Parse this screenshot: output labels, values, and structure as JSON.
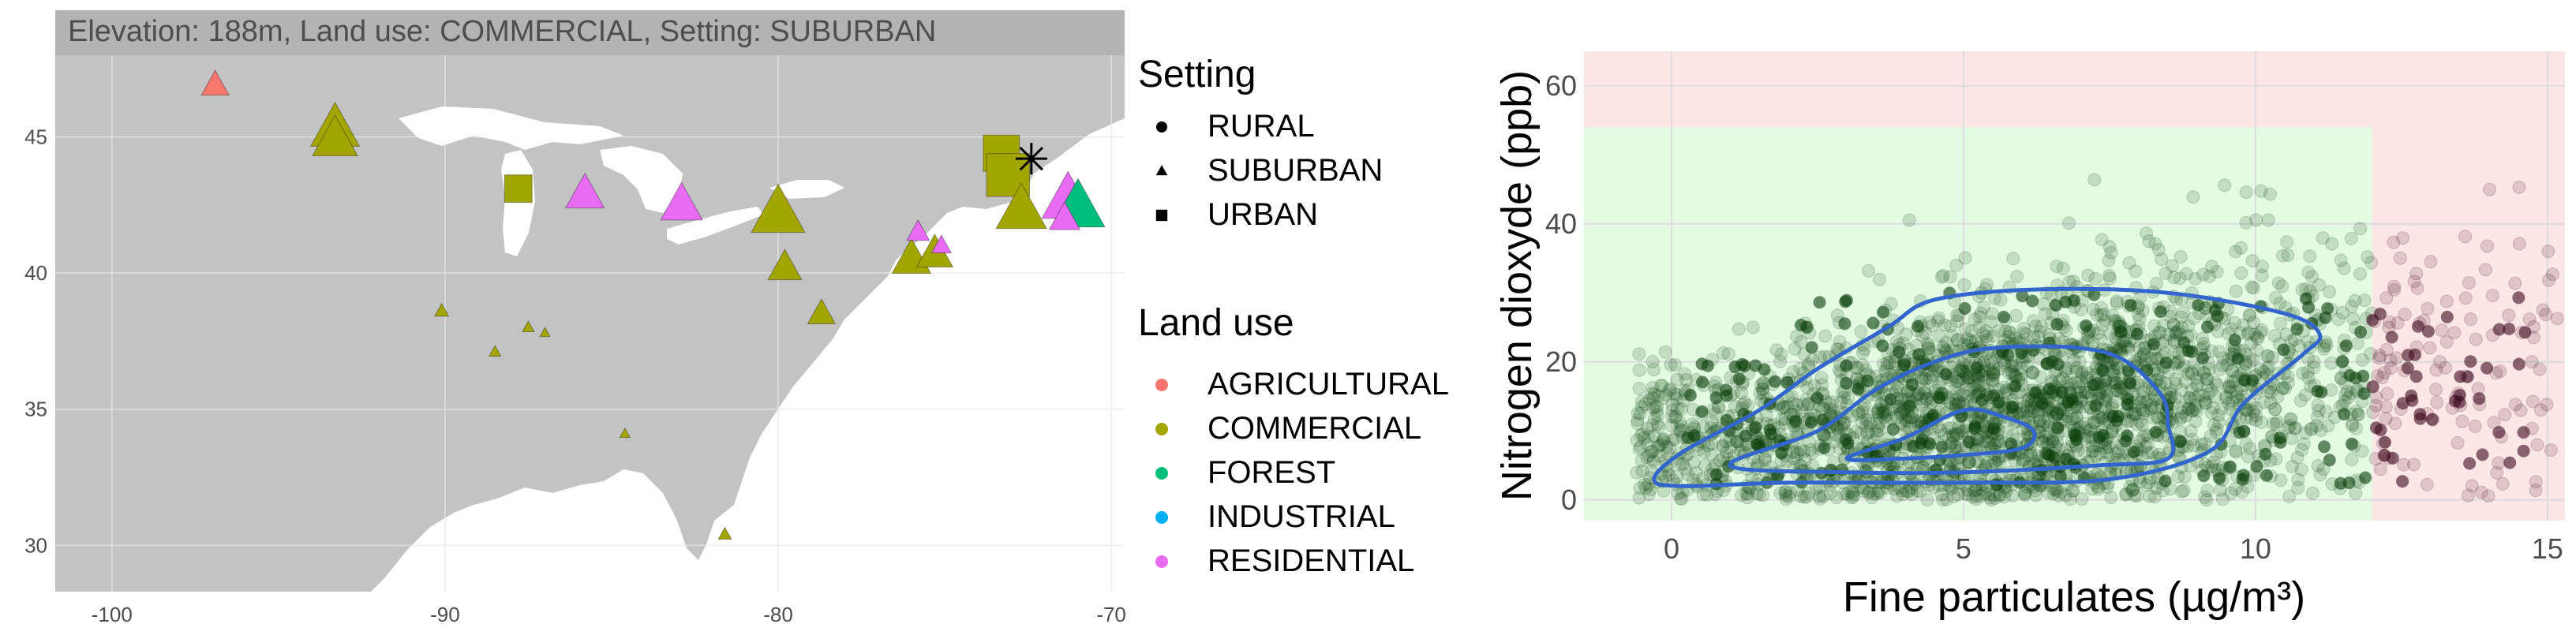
{
  "chart_data": [
    {
      "type": "scatter",
      "subtype": "map",
      "title": "Elevation: 188m, Land use: COMMERCIAL, Setting: SUBURBAN",
      "xlabel": "",
      "ylabel": "",
      "xlim": [
        -101.7,
        -69.6
      ],
      "ylim": [
        28.3,
        48.0
      ],
      "x_ticks": [
        -100,
        -90,
        -80,
        -70
      ],
      "x_tick_labels": [
        "-100",
        "-90",
        "-80",
        "-70"
      ],
      "y_ticks": [
        30,
        35,
        40,
        45
      ],
      "y_tick_labels": [
        "30",
        "35",
        "40",
        "45"
      ],
      "grid": true,
      "colors": {
        "land": "#c3c3c3",
        "water": "#ffffff",
        "grid": "#e6e6e6",
        "title_bar": "#b3b3b3",
        "title_text": "#ffffff",
        "selected_marker": "#000000"
      },
      "legends": [
        {
          "title": "Setting",
          "entries": [
            {
              "label": "RURAL",
              "shape": "circle"
            },
            {
              "label": "SUBURBAN",
              "shape": "triangle"
            },
            {
              "label": "URBAN",
              "shape": "square"
            }
          ]
        },
        {
          "title": "Land use",
          "entries": [
            {
              "label": "AGRICULTURAL",
              "color": "#f8766d"
            },
            {
              "label": "COMMERCIAL",
              "color": "#a3a500"
            },
            {
              "label": "FOREST",
              "color": "#00bf7d"
            },
            {
              "label": "INDUSTRIAL",
              "color": "#00b0f6"
            },
            {
              "label": "RESIDENTIAL",
              "color": "#e76bf3"
            }
          ]
        }
      ],
      "legend_position": "right",
      "points": [
        {
          "lon": -96.9,
          "lat": 46.9,
          "land": "AGRICULTURAL",
          "shape": "triangle",
          "elev": 150
        },
        {
          "lon": -93.3,
          "lat": 45.3,
          "land": "COMMERCIAL",
          "shape": "triangle",
          "elev": 600
        },
        {
          "lon": -93.3,
          "lat": 44.9,
          "land": "COMMERCIAL",
          "shape": "triangle",
          "elev": 500
        },
        {
          "lon": -87.8,
          "lat": 43.1,
          "land": "COMMERCIAL",
          "shape": "square",
          "elev": 150
        },
        {
          "lon": -85.8,
          "lat": 42.9,
          "land": "RESIDENTIAL",
          "shape": "triangle",
          "elev": 350
        },
        {
          "lon": -82.9,
          "lat": 42.5,
          "land": "RESIDENTIAL",
          "shape": "triangle",
          "elev": 420
        },
        {
          "lon": -80.0,
          "lat": 42.2,
          "land": "COMMERCIAL",
          "shape": "triangle",
          "elev": 750
        },
        {
          "lon": -79.8,
          "lat": 40.2,
          "land": "COMMERCIAL",
          "shape": "triangle",
          "elev": 250
        },
        {
          "lon": -78.7,
          "lat": 38.5,
          "land": "COMMERCIAL",
          "shape": "triangle",
          "elev": 150
        },
        {
          "lon": -76.0,
          "lat": 40.5,
          "land": "COMMERCIAL",
          "shape": "triangle",
          "elev": 350
        },
        {
          "lon": -75.3,
          "lat": 40.7,
          "land": "COMMERCIAL",
          "shape": "triangle",
          "elev": 300
        },
        {
          "lon": -75.8,
          "lat": 41.5,
          "land": "RESIDENTIAL",
          "shape": "triangle",
          "elev": 90
        },
        {
          "lon": -75.1,
          "lat": 41.0,
          "land": "RESIDENTIAL",
          "shape": "triangle",
          "elev": 60
        },
        {
          "lon": -73.3,
          "lat": 44.4,
          "land": "COMMERCIAL",
          "shape": "square",
          "elev": 300
        },
        {
          "lon": -73.1,
          "lat": 43.6,
          "land": "COMMERCIAL",
          "shape": "square",
          "elev": 450
        },
        {
          "lon": -72.7,
          "lat": 42.3,
          "land": "COMMERCIAL",
          "shape": "triangle",
          "elev": 650
        },
        {
          "lon": -71.3,
          "lat": 42.7,
          "land": "RESIDENTIAL",
          "shape": "triangle",
          "elev": 700
        },
        {
          "lon": -71.0,
          "lat": 42.4,
          "land": "FOREST",
          "shape": "triangle",
          "elev": 750
        },
        {
          "lon": -71.4,
          "lat": 42.0,
          "land": "RESIDENTIAL",
          "shape": "triangle",
          "elev": 200
        },
        {
          "lon": -90.1,
          "lat": 38.6,
          "land": "COMMERCIAL",
          "shape": "triangle",
          "elev": 20
        },
        {
          "lon": -88.5,
          "lat": 37.1,
          "land": "COMMERCIAL",
          "shape": "triangle",
          "elev": 10
        },
        {
          "lon": -87.5,
          "lat": 38.0,
          "land": "COMMERCIAL",
          "shape": "triangle",
          "elev": 10
        },
        {
          "lon": -87.0,
          "lat": 37.8,
          "land": "COMMERCIAL",
          "shape": "triangle",
          "elev": 5
        },
        {
          "lon": -84.6,
          "lat": 34.1,
          "land": "COMMERCIAL",
          "shape": "triangle",
          "elev": 5
        },
        {
          "lon": -81.6,
          "lat": 30.4,
          "land": "COMMERCIAL",
          "shape": "triangle",
          "elev": 15
        }
      ],
      "selected_point": {
        "lon": -72.4,
        "lat": 44.2,
        "marker": "asterisk"
      }
    },
    {
      "type": "scatter",
      "title": "",
      "xlabel": "Fine particulates (µg/m³)",
      "ylabel": "Nitrogen dioxyde (ppb)",
      "xlim": [
        -1.5,
        15.3
      ],
      "ylim": [
        -3,
        65
      ],
      "x_ticks": [
        0,
        5,
        10,
        15
      ],
      "x_tick_labels": [
        "0",
        "5",
        "10",
        "15"
      ],
      "y_ticks": [
        0,
        20,
        40,
        60
      ],
      "y_tick_labels": [
        "0",
        "20",
        "40",
        "60"
      ],
      "grid": true,
      "colors": {
        "safe_zone": "#e3fbe3",
        "danger_zone": "#fde6e6",
        "safe_points": "#0a3d0a",
        "danger_points": "#3d0a1f",
        "contour": "#3366cc",
        "grid": "#dcdcdc"
      },
      "zones": [
        {
          "name": "safe",
          "x": [
            -1.5,
            12.0
          ],
          "y": [
            -3,
            54
          ]
        },
        {
          "name": "danger",
          "x": [
            12.0,
            15.3
          ],
          "y": [
            -3,
            65
          ]
        }
      ],
      "point_alpha": 0.15,
      "point_count": 2600,
      "density_contours": [
        {
          "level": 1,
          "points": [
            [
              -0.3,
              3
            ],
            [
              0.2,
              7
            ],
            [
              1.5,
              13
            ],
            [
              2.5,
              19
            ],
            [
              3.7,
              25
            ],
            [
              4.5,
              29
            ],
            [
              6.3,
              30.5
            ],
            [
              8.5,
              30
            ],
            [
              10.5,
              27
            ],
            [
              11.1,
              24
            ],
            [
              10.8,
              21
            ],
            [
              9.8,
              14
            ],
            [
              9.2,
              7
            ],
            [
              7.5,
              3
            ],
            [
              5.0,
              2.5
            ],
            [
              2.0,
              2.5
            ],
            [
              0.2,
              2
            ]
          ]
        },
        {
          "level": 2,
          "points": [
            [
              1.0,
              5
            ],
            [
              2.5,
              10
            ],
            [
              3.5,
              16
            ],
            [
              4.5,
              20
            ],
            [
              5.5,
              22
            ],
            [
              7.0,
              22
            ],
            [
              7.8,
              20
            ],
            [
              8.4,
              15
            ],
            [
              8.5,
              11
            ],
            [
              8.5,
              6
            ],
            [
              7.3,
              5
            ],
            [
              5.0,
              4
            ],
            [
              3.0,
              4
            ]
          ]
        },
        {
          "level": 3,
          "points": [
            [
              3.0,
              6
            ],
            [
              4.0,
              9
            ],
            [
              5.0,
              13
            ],
            [
              5.7,
              12
            ],
            [
              6.2,
              10
            ],
            [
              6.0,
              7.5
            ],
            [
              5.0,
              6.5
            ],
            [
              4.0,
              6
            ]
          ]
        }
      ]
    }
  ]
}
